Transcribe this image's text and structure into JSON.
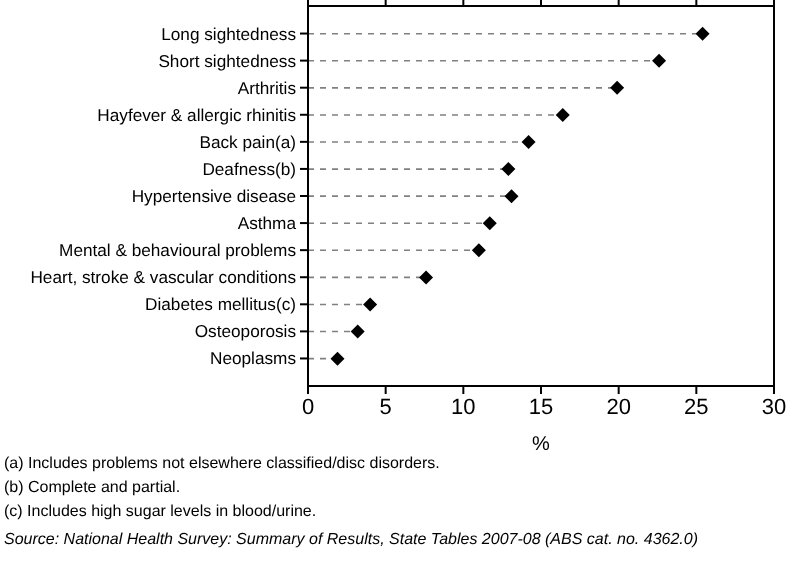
{
  "chart_data": {
    "type": "lollipop",
    "orientation": "horizontal",
    "xlabel": "%",
    "categories": [
      "Long sightedness",
      "Short sightedness",
      "Arthritis",
      "Hayfever & allergic rhinitis",
      "Back pain(a)",
      "Deafness(b)",
      "Hypertensive disease",
      "Asthma",
      "Mental & behavioural problems",
      "Heart, stroke & vascular conditions",
      "Diabetes mellitus(c)",
      "Osteoporosis",
      "Neoplasms"
    ],
    "series": [
      {
        "color": "#000000",
        "values": [
          25.4,
          22.6,
          19.9,
          16.4,
          14.2,
          12.9,
          13.1,
          11.7,
          11.0,
          7.6,
          4.0,
          3.2,
          1.9
        ]
      }
    ],
    "xlim": [
      0,
      30
    ],
    "xticks": [
      0,
      5,
      10,
      15,
      20,
      25,
      30
    ],
    "marker": "diamond",
    "line_style": "dashed",
    "grid": false,
    "legend": false,
    "annotations": [
      "(a) Includes problems not elsewhere classified/disc disorders.",
      "(b) Complete and partial.",
      "(c) Includes high sugar levels in blood/urine.",
      "Source: National Health Survey: Summary of Results, State Tables 2007-08 (ABS cat. no. 4362.0)"
    ]
  }
}
